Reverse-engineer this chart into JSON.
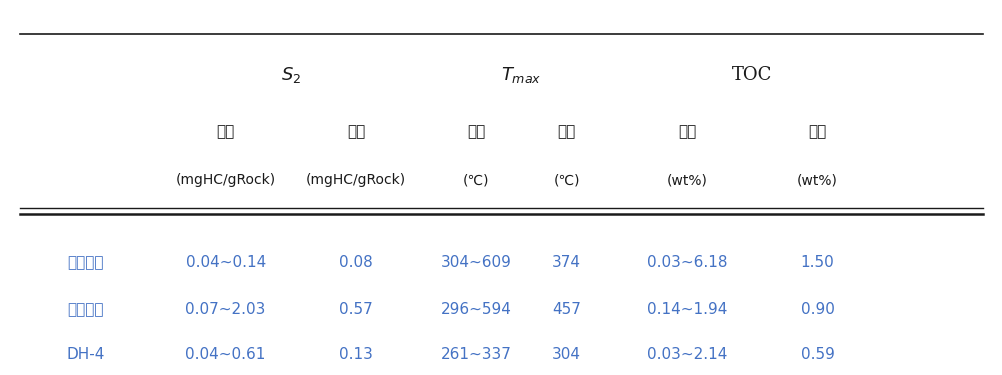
{
  "subheaders": [
    "범위",
    "평균",
    "범위",
    "평균",
    "범위",
    "평균"
  ],
  "units": [
    "(mgHC/gRock)",
    "(mgHC/gRock)",
    "(℃)",
    "(℃)",
    "(wt%)",
    "(wt%)"
  ],
  "row_labels": [
    "경상분지",
    "해남분지",
    "DH-4"
  ],
  "rows": [
    [
      "0.04~0.14",
      "0.08",
      "304~609",
      "374",
      "0.03~6.18",
      "1.50"
    ],
    [
      "0.07~2.03",
      "0.57",
      "296~594",
      "457",
      "0.14~1.94",
      "0.90"
    ],
    [
      "0.04~0.61",
      "0.13",
      "261~337",
      "304",
      "0.03~2.14",
      "0.59"
    ]
  ],
  "text_color": "#4472c4",
  "header_color": "#1a1a1a",
  "line_color": "#1a1a1a",
  "bg_color": "#ffffff",
  "fontsize_data": 11,
  "fontsize_header": 11,
  "fontsize_group": 12,
  "fontsize_unit": 10
}
